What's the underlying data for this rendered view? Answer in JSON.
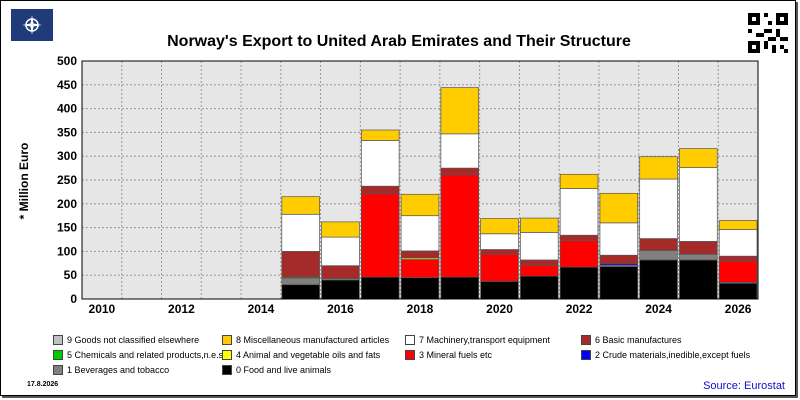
{
  "footer": {
    "date": "17.8.2026",
    "source": "Source: Eurostat"
  },
  "chart_data": {
    "type": "bar",
    "stacked": true,
    "title": "Norway's Export to United Arab Emirates and Their Structure",
    "xlabel": "",
    "ylabel": "* Million Euro",
    "ylim": [
      0,
      500
    ],
    "yticks": [
      0,
      50,
      100,
      150,
      200,
      250,
      300,
      350,
      400,
      450,
      500
    ],
    "grid": true,
    "legend_position": "bottom",
    "x": [
      2010,
      2011,
      2012,
      2013,
      2014,
      2015,
      2016,
      2017,
      2018,
      2019,
      2020,
      2021,
      2022,
      2023,
      2024,
      2025,
      2026
    ],
    "xtick_labels": [
      "2010",
      "2012",
      "2014",
      "2016",
      "2018",
      "2020",
      "2022",
      "2024",
      "2026"
    ],
    "series": [
      {
        "name": "0 Food and live animals",
        "color": "#000000",
        "values": [
          0,
          0,
          0,
          0,
          0,
          30,
          40,
          46,
          45,
          46,
          37,
          48,
          67,
          68,
          82,
          82,
          33
        ]
      },
      {
        "name": "1 Beverages and tobacco",
        "color": "#808080",
        "values": [
          0,
          0,
          0,
          0,
          0,
          14,
          3,
          0,
          0,
          0,
          0,
          0,
          0,
          3,
          20,
          12,
          2
        ]
      },
      {
        "name": "2 Crude materials,inedible,except fuels",
        "color": "#0000ff",
        "values": [
          0,
          0,
          0,
          0,
          0,
          0,
          0,
          0,
          0,
          0,
          0,
          0,
          0,
          3,
          0,
          0,
          0
        ]
      },
      {
        "name": "3 Mineral fuels etc",
        "color": "#ff0000",
        "values": [
          0,
          0,
          0,
          0,
          0,
          0,
          0,
          175,
          38,
          215,
          57,
          22,
          56,
          0,
          0,
          0,
          45
        ]
      },
      {
        "name": "4 Animal and vegetable oils and fats",
        "color": "#ffff00",
        "values": [
          0,
          0,
          0,
          0,
          0,
          0,
          0,
          0,
          3,
          0,
          0,
          0,
          0,
          0,
          0,
          0,
          0
        ]
      },
      {
        "name": "5 Chemicals and related products,n.e.s.",
        "color": "#00cc00",
        "values": [
          0,
          0,
          0,
          0,
          0,
          2,
          0,
          0,
          0,
          0,
          0,
          0,
          0,
          0,
          0,
          0,
          0
        ]
      },
      {
        "name": "6 Basic manufactures",
        "color": "#a52a2a",
        "values": [
          0,
          0,
          0,
          0,
          0,
          54,
          27,
          16,
          15,
          14,
          10,
          12,
          11,
          18,
          25,
          27,
          10
        ]
      },
      {
        "name": "7 Machinery,transport equipment",
        "color": "#ffffff",
        "values": [
          0,
          0,
          0,
          0,
          0,
          78,
          60,
          96,
          74,
          72,
          33,
          58,
          98,
          68,
          125,
          155,
          56
        ]
      },
      {
        "name": "8 Miscellaneous manufactured articles",
        "color": "#ffcc00",
        "values": [
          0,
          0,
          0,
          0,
          0,
          37,
          32,
          22,
          45,
          97,
          32,
          30,
          30,
          62,
          47,
          40,
          19
        ]
      },
      {
        "name": "9 Goods not classified elsewhere",
        "color": "#c0c0c0",
        "values": [
          0,
          0,
          0,
          0,
          0,
          0,
          0,
          0,
          0,
          0,
          0,
          0,
          0,
          0,
          0,
          0,
          0
        ]
      }
    ],
    "legend_order": [
      9,
      8,
      7,
      6,
      5,
      4,
      3,
      2,
      1,
      0
    ]
  }
}
